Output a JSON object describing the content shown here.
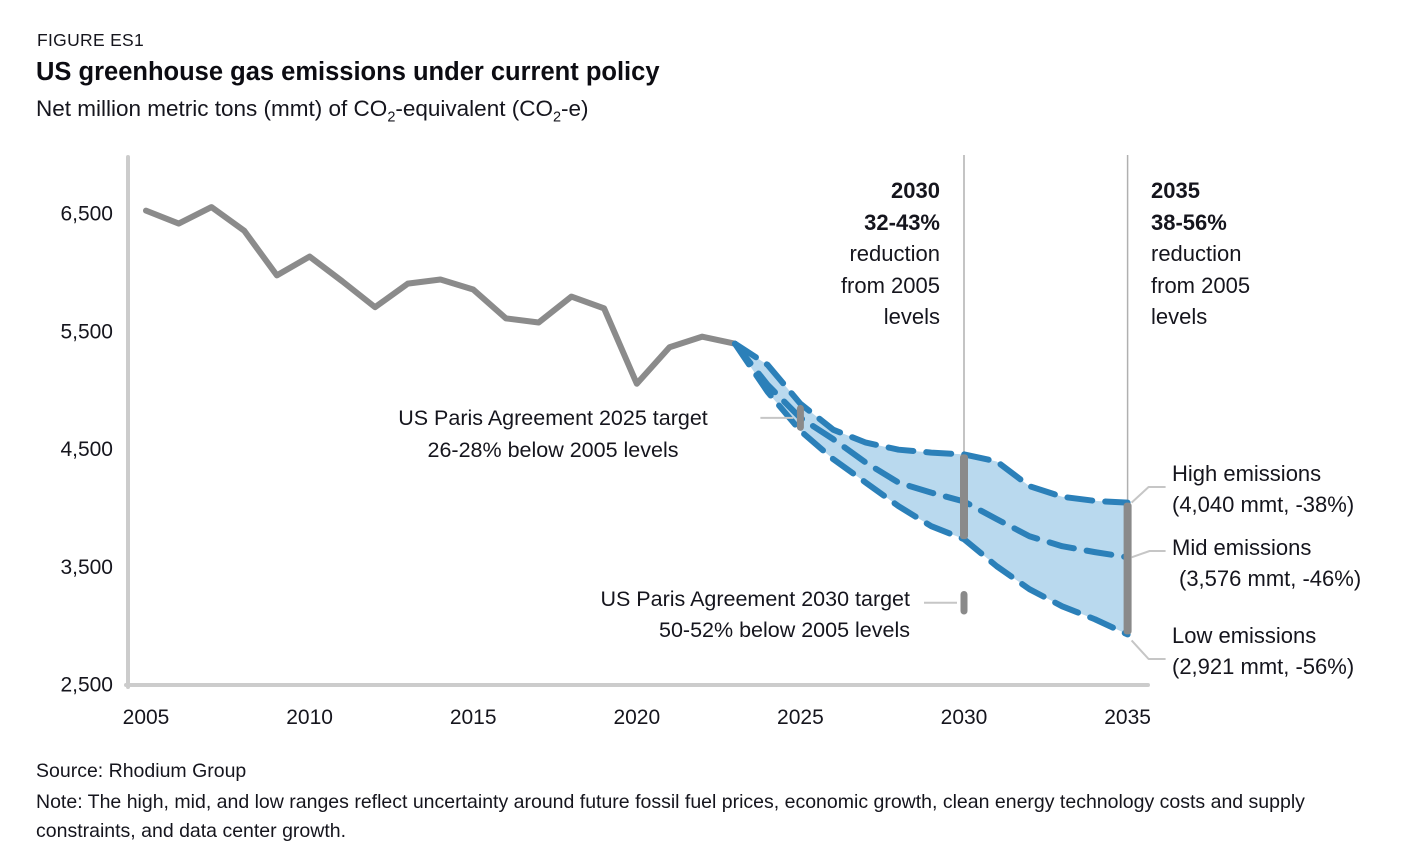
{
  "header": {
    "figure_label": "FIGURE ES1",
    "title": "US greenhouse gas emissions under current policy",
    "subtitle_parts": [
      "Net million metric tons (mmt) of CO",
      "2",
      "-equivalent (CO",
      "2",
      "-e)"
    ]
  },
  "annotations": {
    "r2030": {
      "lines": [
        "2030",
        "32-43%",
        "reduction",
        "from 2005",
        "levels"
      ]
    },
    "r2035": {
      "lines": [
        "2035",
        "38-56%",
        "reduction",
        "from 2005",
        "levels"
      ]
    },
    "paris2025": {
      "lines": [
        "US Paris Agreement 2025 target",
        "26-28% below 2005 levels"
      ]
    },
    "paris2030": {
      "lines": [
        "US Paris Agreement 2030 target",
        "50-52% below 2005 levels"
      ]
    },
    "scenario_labels": {
      "high": {
        "name": "High emissions",
        "value": "(4,040 mmt, -38%)"
      },
      "mid": {
        "name": "Mid emissions",
        "value": "(3,576 mmt, -46%)"
      },
      "low": {
        "name": "Low emissions",
        "value": "(2,921 mmt, -56%)"
      }
    }
  },
  "footer": {
    "source": "Source: Rhodium Group",
    "note": "Note: The high, mid, and low ranges reflect uncertainty around future fossil fuel prices, economic growth, clean energy technology costs and supply constraints, and data center growth."
  },
  "colors": {
    "text": "#15151d",
    "historical_line": "#8b8b8b",
    "projection_line": "#2b80b9",
    "band_fill": "#b9d9ee",
    "axis": "#cccccc",
    "reference_line": "#b0b0b0",
    "marker": "#8a8a8a",
    "connector": "#c6c6c6"
  },
  "chart_data": {
    "type": "line",
    "title": "US greenhouse gas emissions under current policy",
    "ylabel": "Net million metric tons (mmt) of CO2-equivalent (CO2-e)",
    "xlim": [
      2005,
      2035
    ],
    "ylim": [
      2500,
      6500
    ],
    "x_ticks": [
      2005,
      2010,
      2015,
      2020,
      2025,
      2030,
      2035
    ],
    "y_ticks": [
      2500,
      3500,
      4500,
      5500,
      6500
    ],
    "y_tick_labels": [
      "2,500",
      "3,500",
      "4,500",
      "5,500",
      "6,500"
    ],
    "grid": false,
    "series": [
      {
        "name": "Historical",
        "color": "#8b8b8b",
        "dash": false,
        "x": [
          2005,
          2006,
          2007,
          2008,
          2009,
          2010,
          2011,
          2012,
          2013,
          2014,
          2015,
          2016,
          2017,
          2018,
          2019,
          2020,
          2021,
          2022,
          2023
        ],
        "values": [
          6520,
          6410,
          6550,
          6350,
          5970,
          6130,
          5920,
          5700,
          5900,
          5935,
          5850,
          5605,
          5570,
          5790,
          5690,
          5050,
          5360,
          5450,
          5390
        ]
      },
      {
        "name": "High emissions",
        "color": "#2b80b9",
        "dash": true,
        "x": [
          2023,
          2024,
          2025,
          2026,
          2027,
          2028,
          2029,
          2030,
          2031,
          2032,
          2033,
          2034,
          2035
        ],
        "values": [
          5390,
          5210,
          4880,
          4660,
          4550,
          4490,
          4465,
          4450,
          4390,
          4180,
          4090,
          4055,
          4040
        ]
      },
      {
        "name": "Mid emissions",
        "color": "#2b80b9",
        "dash": true,
        "x": [
          2023,
          2024,
          2025,
          2026,
          2027,
          2028,
          2029,
          2030,
          2031,
          2032,
          2033,
          2034,
          2035
        ],
        "values": [
          5390,
          5040,
          4760,
          4580,
          4380,
          4210,
          4125,
          4050,
          3900,
          3755,
          3670,
          3620,
          3576
        ]
      },
      {
        "name": "Low emissions",
        "color": "#2b80b9",
        "dash": true,
        "x": [
          2023,
          2024,
          2025,
          2026,
          2027,
          2028,
          2029,
          2030,
          2031,
          2032,
          2033,
          2034,
          2035
        ],
        "values": [
          5390,
          4980,
          4650,
          4410,
          4210,
          4010,
          3840,
          3730,
          3500,
          3305,
          3160,
          3050,
          2921
        ]
      }
    ],
    "band": {
      "from": 2023,
      "to": 2035,
      "upper": "High emissions",
      "lower": "Low emissions"
    },
    "reference_years": [
      2030,
      2035
    ],
    "range_bars": [
      {
        "year": 2030,
        "low": 3730,
        "high": 4450
      },
      {
        "year": 2035,
        "low": 2921,
        "high": 4040
      }
    ],
    "target_markers": [
      {
        "label": "US Paris Agreement 2025 target",
        "year": 2025,
        "low": 4650,
        "high": 4870
      },
      {
        "label": "US Paris Agreement 2030 target",
        "year": 2030,
        "low": 3090,
        "high": 3290
      }
    ],
    "end_labels": [
      {
        "name": "High emissions",
        "value_mmt": 4040,
        "change_vs_2005": "-38%"
      },
      {
        "name": "Mid emissions",
        "value_mmt": 3576,
        "change_vs_2005": "-46%"
      },
      {
        "name": "Low emissions",
        "value_mmt": 2921,
        "change_vs_2005": "-56%"
      }
    ]
  }
}
